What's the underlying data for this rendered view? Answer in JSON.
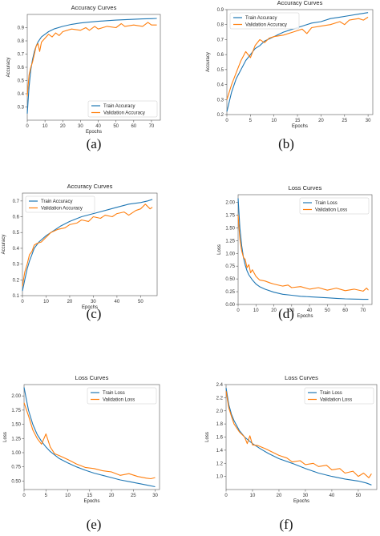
{
  "colors": {
    "train": "#1f77b4",
    "validation": "#ff7f0e",
    "axis": "#555555",
    "legend_border": "#cccccc"
  },
  "chart_data": [
    {
      "id": "a",
      "caption": "(a)",
      "type": "line",
      "title": "Accuracy Curves",
      "xlabel": "Epochs",
      "ylabel": "Accuracy",
      "xlim": [
        0,
        75
      ],
      "ylim": [
        0.2,
        1.0
      ],
      "xticks": [
        0,
        10,
        20,
        30,
        40,
        50,
        60,
        70
      ],
      "yticks": [
        0.3,
        0.4,
        0.5,
        0.6,
        0.7,
        0.8,
        0.9
      ],
      "legend_position": "lower-right",
      "series": [
        {
          "name": "Train Accuracy",
          "x": [
            0,
            1,
            2,
            3,
            4,
            5,
            6,
            7,
            8,
            10,
            12,
            15,
            20,
            25,
            30,
            35,
            40,
            45,
            50,
            55,
            60,
            65,
            70,
            73
          ],
          "y": [
            0.25,
            0.45,
            0.58,
            0.66,
            0.72,
            0.76,
            0.79,
            0.81,
            0.83,
            0.85,
            0.87,
            0.89,
            0.91,
            0.925,
            0.935,
            0.942,
            0.948,
            0.953,
            0.957,
            0.96,
            0.963,
            0.966,
            0.968,
            0.97
          ]
        },
        {
          "name": "Validation Accuracy",
          "x": [
            0,
            1,
            2,
            3,
            4,
            5,
            6,
            7,
            8,
            10,
            12,
            14,
            16,
            18,
            20,
            25,
            30,
            33,
            35,
            38,
            40,
            45,
            50,
            53,
            55,
            60,
            65,
            68,
            70,
            73
          ],
          "y": [
            0.38,
            0.54,
            0.6,
            0.64,
            0.7,
            0.76,
            0.78,
            0.72,
            0.79,
            0.82,
            0.85,
            0.83,
            0.86,
            0.84,
            0.87,
            0.89,
            0.88,
            0.9,
            0.88,
            0.91,
            0.89,
            0.91,
            0.9,
            0.93,
            0.91,
            0.92,
            0.91,
            0.94,
            0.92,
            0.92
          ]
        }
      ]
    },
    {
      "id": "b",
      "caption": "(b)",
      "type": "line",
      "title": "Accuracy Curves",
      "xlabel": "Epochs",
      "ylabel": "Accuracy",
      "xlim": [
        0,
        31
      ],
      "ylim": [
        0.2,
        0.9
      ],
      "xticks": [
        0,
        5,
        10,
        15,
        20,
        25,
        30
      ],
      "yticks": [
        0.2,
        0.3,
        0.4,
        0.5,
        0.6,
        0.7,
        0.8,
        0.9
      ],
      "legend_position": "top-left",
      "series": [
        {
          "name": "Train Accuracy",
          "x": [
            0,
            1,
            2,
            3,
            4,
            5,
            6,
            7,
            8,
            10,
            12,
            14,
            16,
            18,
            20,
            22,
            24,
            26,
            28,
            30
          ],
          "y": [
            0.22,
            0.35,
            0.44,
            0.5,
            0.56,
            0.6,
            0.64,
            0.66,
            0.69,
            0.72,
            0.75,
            0.77,
            0.79,
            0.81,
            0.82,
            0.84,
            0.85,
            0.86,
            0.87,
            0.88
          ]
        },
        {
          "name": "Validation Accuracy",
          "x": [
            0,
            1,
            2,
            3,
            4,
            5,
            6,
            7,
            8,
            9,
            10,
            12,
            14,
            16,
            17,
            18,
            20,
            22,
            24,
            25,
            26,
            28,
            29,
            30
          ],
          "y": [
            0.3,
            0.4,
            0.48,
            0.56,
            0.62,
            0.58,
            0.66,
            0.7,
            0.68,
            0.71,
            0.72,
            0.73,
            0.75,
            0.77,
            0.74,
            0.78,
            0.79,
            0.8,
            0.82,
            0.8,
            0.83,
            0.84,
            0.83,
            0.85
          ]
        }
      ]
    },
    {
      "id": "c",
      "caption": "(c)",
      "type": "line",
      "title": "Accuracy Curves",
      "xlabel": "Epochs",
      "ylabel": "Accuracy",
      "xlim": [
        0,
        57
      ],
      "ylim": [
        0.1,
        0.75
      ],
      "xticks": [
        0,
        10,
        20,
        30,
        40,
        50
      ],
      "yticks": [
        0.1,
        0.2,
        0.3,
        0.4,
        0.5,
        0.6,
        0.7
      ],
      "legend_position": "top-left",
      "series": [
        {
          "name": "Train Accuracy",
          "x": [
            0,
            1,
            2,
            3,
            4,
            5,
            7,
            10,
            13,
            16,
            20,
            25,
            30,
            35,
            40,
            45,
            50,
            53,
            55
          ],
          "y": [
            0.13,
            0.2,
            0.27,
            0.32,
            0.36,
            0.4,
            0.44,
            0.48,
            0.51,
            0.54,
            0.57,
            0.6,
            0.62,
            0.64,
            0.66,
            0.68,
            0.69,
            0.7,
            0.71
          ]
        },
        {
          "name": "Validation Accuracy",
          "x": [
            0,
            1,
            2,
            3,
            4,
            5,
            6,
            8,
            10,
            12,
            15,
            18,
            20,
            23,
            25,
            28,
            30,
            33,
            35,
            38,
            40,
            43,
            45,
            48,
            50,
            52,
            54,
            55
          ],
          "y": [
            0.16,
            0.25,
            0.3,
            0.36,
            0.38,
            0.42,
            0.43,
            0.44,
            0.47,
            0.5,
            0.52,
            0.53,
            0.55,
            0.56,
            0.58,
            0.57,
            0.6,
            0.59,
            0.61,
            0.6,
            0.62,
            0.63,
            0.61,
            0.64,
            0.65,
            0.68,
            0.65,
            0.66
          ]
        }
      ]
    },
    {
      "id": "d",
      "caption": "(d)",
      "type": "line",
      "title": "Loss Curves",
      "xlabel": "Epochs",
      "ylabel": "Loss",
      "xlim": [
        0,
        75
      ],
      "ylim": [
        0.0,
        2.15
      ],
      "xticks": [
        0,
        10,
        20,
        30,
        40,
        50,
        60,
        70
      ],
      "yticks": [
        0.0,
        0.25,
        0.5,
        0.75,
        1.0,
        1.25,
        1.5,
        1.75,
        2.0
      ],
      "ytick_labels": [
        "0.00",
        "0.25",
        "0.50",
        "0.75",
        "1.00",
        "1.25",
        "1.50",
        "1.75",
        "2.00"
      ],
      "legend_position": "top-right",
      "series": [
        {
          "name": "Train Loss",
          "x": [
            0,
            1,
            2,
            3,
            4,
            5,
            6,
            8,
            10,
            12,
            15,
            20,
            25,
            30,
            35,
            40,
            45,
            50,
            55,
            60,
            65,
            70,
            73
          ],
          "y": [
            2.08,
            1.5,
            1.15,
            0.92,
            0.77,
            0.66,
            0.58,
            0.48,
            0.4,
            0.35,
            0.3,
            0.24,
            0.2,
            0.18,
            0.16,
            0.15,
            0.14,
            0.13,
            0.12,
            0.11,
            0.105,
            0.1,
            0.1
          ]
        },
        {
          "name": "Validation Loss",
          "x": [
            0,
            1,
            2,
            3,
            4,
            5,
            6,
            7,
            8,
            10,
            12,
            15,
            18,
            20,
            25,
            28,
            30,
            35,
            40,
            45,
            50,
            55,
            60,
            65,
            70,
            72,
            73
          ],
          "y": [
            1.75,
            1.28,
            1.05,
            0.92,
            0.88,
            0.72,
            0.78,
            0.62,
            0.68,
            0.55,
            0.48,
            0.46,
            0.42,
            0.4,
            0.36,
            0.38,
            0.33,
            0.35,
            0.3,
            0.33,
            0.28,
            0.32,
            0.27,
            0.3,
            0.26,
            0.32,
            0.28
          ]
        }
      ]
    },
    {
      "id": "e",
      "caption": "(e)",
      "type": "line",
      "title": "Loss Curves",
      "xlabel": "Epochs",
      "ylabel": "Loss",
      "xlim": [
        0,
        31
      ],
      "ylim": [
        0.35,
        2.2
      ],
      "xticks": [
        0,
        5,
        10,
        15,
        20,
        25,
        30
      ],
      "yticks": [
        0.5,
        0.75,
        1.0,
        1.25,
        1.5,
        1.75,
        2.0
      ],
      "ytick_labels": [
        "0.50",
        "0.75",
        "1.00",
        "1.25",
        "1.50",
        "1.75",
        "2.00"
      ],
      "legend_position": "top-right",
      "series": [
        {
          "name": "Train Loss",
          "x": [
            0,
            1,
            2,
            3,
            4,
            5,
            6,
            8,
            10,
            12,
            14,
            16,
            18,
            20,
            22,
            24,
            26,
            28,
            30
          ],
          "y": [
            2.15,
            1.75,
            1.5,
            1.32,
            1.2,
            1.1,
            1.02,
            0.9,
            0.82,
            0.75,
            0.69,
            0.64,
            0.6,
            0.56,
            0.52,
            0.49,
            0.46,
            0.43,
            0.4
          ]
        },
        {
          "name": "Validation Loss",
          "x": [
            0,
            1,
            2,
            3,
            4,
            5,
            6,
            7,
            8,
            10,
            12,
            14,
            16,
            18,
            20,
            22,
            24,
            26,
            28,
            29,
            30
          ],
          "y": [
            1.88,
            1.65,
            1.4,
            1.25,
            1.15,
            1.33,
            1.1,
            0.98,
            0.95,
            0.88,
            0.8,
            0.74,
            0.72,
            0.68,
            0.66,
            0.6,
            0.63,
            0.58,
            0.55,
            0.54,
            0.56
          ]
        }
      ]
    },
    {
      "id": "f",
      "caption": "(f)",
      "type": "line",
      "title": "Loss Curves",
      "xlabel": "Epochs",
      "ylabel": "Loss",
      "xlim": [
        0,
        57
      ],
      "ylim": [
        0.8,
        2.4
      ],
      "xticks": [
        0,
        10,
        20,
        30,
        40,
        50
      ],
      "yticks": [
        1.0,
        1.2,
        1.4,
        1.6,
        1.8,
        2.0,
        2.2,
        2.4
      ],
      "ytick_labels": [
        "1.0",
        "1.2",
        "1.4",
        "1.6",
        "1.8",
        "2.0",
        "2.2",
        "2.4"
      ],
      "legend_position": "top-right",
      "series": [
        {
          "name": "Train Loss",
          "x": [
            0,
            1,
            2,
            3,
            5,
            7,
            10,
            13,
            16,
            20,
            25,
            30,
            35,
            40,
            45,
            50,
            53,
            55
          ],
          "y": [
            2.35,
            2.1,
            1.95,
            1.85,
            1.7,
            1.6,
            1.5,
            1.42,
            1.35,
            1.27,
            1.2,
            1.12,
            1.05,
            1.0,
            0.96,
            0.93,
            0.9,
            0.87
          ]
        },
        {
          "name": "Validation Loss",
          "x": [
            0,
            1,
            2,
            3,
            5,
            7,
            8,
            9,
            10,
            12,
            15,
            18,
            20,
            23,
            25,
            28,
            30,
            33,
            35,
            38,
            40,
            43,
            45,
            48,
            50,
            52,
            54,
            55
          ],
          "y": [
            2.3,
            2.05,
            1.92,
            1.8,
            1.68,
            1.6,
            1.5,
            1.62,
            1.48,
            1.47,
            1.42,
            1.36,
            1.32,
            1.28,
            1.22,
            1.24,
            1.18,
            1.2,
            1.15,
            1.17,
            1.1,
            1.12,
            1.05,
            1.08,
            1.0,
            1.05,
            0.98,
            1.04
          ]
        }
      ]
    }
  ]
}
